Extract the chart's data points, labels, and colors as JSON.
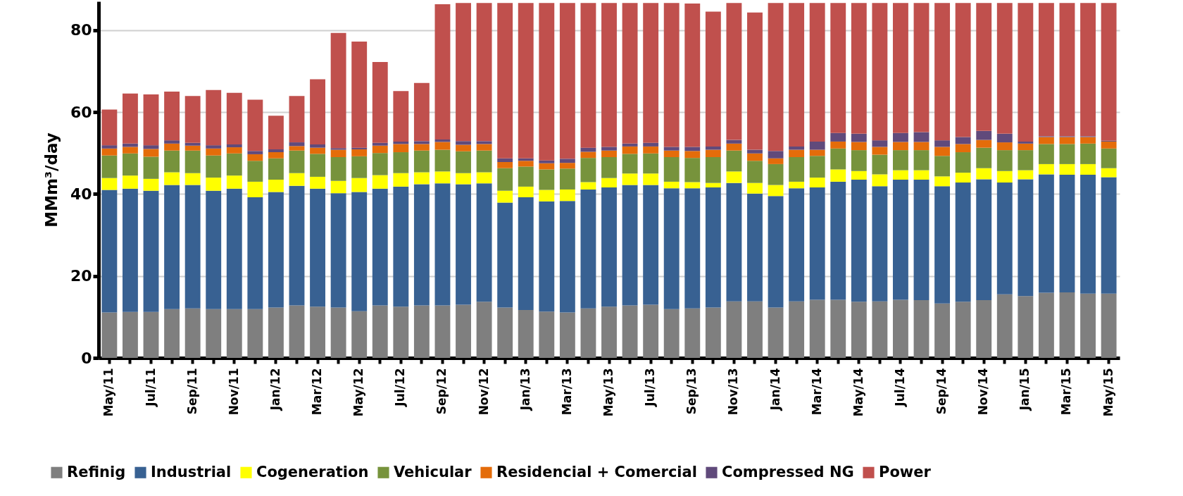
{
  "chart_data": {
    "type": "bar",
    "stacked": true,
    "ylabel": "MMm³/day",
    "ylim": [
      0,
      87
    ],
    "yticks": [
      0,
      20,
      40,
      60,
      80
    ],
    "grid": "y",
    "legend": "bottom",
    "categories": [
      "May/11",
      null,
      "Jul/11",
      null,
      "Sep/11",
      null,
      "Nov/11",
      null,
      "Jan/12",
      null,
      "Mar/12",
      null,
      "May/12",
      null,
      "Jul/12",
      null,
      "Sep/12",
      null,
      "Nov/12",
      null,
      "Jan/13",
      null,
      "Mar/13",
      null,
      "May/13",
      null,
      "Jul/13",
      null,
      "Sep/13",
      null,
      "Nov/13",
      null,
      "Jan/14",
      null,
      "Mar/14",
      null,
      "May/14",
      null,
      "Jul/14",
      null,
      "Sep/14",
      null,
      "Nov/14",
      null,
      "Jan/15",
      null,
      "Mar/15",
      null,
      "May/15"
    ],
    "series": [
      {
        "name": "Refinig",
        "color": "#7f7f7f",
        "values": [
          11.1,
          11.2,
          11.2,
          11.9,
          12.1,
          11.9,
          11.9,
          11.9,
          12.3,
          12.8,
          12.5,
          12.3,
          11.4,
          12.8,
          12.5,
          12.8,
          12.8,
          13.0,
          13.7,
          12.3,
          11.7,
          11.3,
          11.1,
          12.1,
          12.5,
          12.8,
          13.0,
          11.9,
          12.1,
          12.3,
          13.8,
          13.8,
          12.3,
          13.8,
          14.2,
          14.2,
          13.7,
          13.8,
          14.2,
          14.1,
          13.3,
          13.7,
          14.1,
          15.5,
          15.1,
          15.9,
          16.0,
          15.7,
          15.7
        ]
      },
      {
        "name": "Industrial",
        "color": "#386192",
        "values": [
          29.9,
          30.1,
          29.6,
          30.3,
          30.1,
          28.9,
          29.4,
          27.3,
          28.2,
          29.2,
          28.8,
          27.9,
          29.1,
          28.5,
          29.3,
          29.6,
          29.8,
          29.4,
          28.9,
          25.6,
          27.5,
          26.9,
          27.2,
          29.0,
          29.1,
          29.4,
          29.2,
          29.5,
          29.3,
          29.3,
          28.9,
          26.3,
          27.2,
          27.6,
          27.4,
          28.8,
          29.8,
          28.1,
          29.3,
          29.4,
          28.6,
          29.1,
          29.5,
          27.3,
          28.5,
          28.9,
          28.7,
          29.0,
          28.4
        ]
      },
      {
        "name": "Cogeneration",
        "color": "#ffff00",
        "values": [
          2.9,
          3.2,
          2.9,
          3.1,
          2.9,
          3.2,
          3.2,
          3.8,
          3.0,
          3.1,
          2.9,
          3.0,
          3.4,
          3.3,
          3.3,
          2.9,
          2.9,
          2.7,
          2.7,
          2.9,
          2.6,
          2.8,
          2.8,
          1.8,
          2.3,
          2.8,
          2.8,
          1.6,
          1.5,
          1.1,
          2.8,
          2.6,
          2.7,
          1.6,
          2.4,
          3.0,
          2.1,
          2.9,
          2.3,
          2.3,
          2.4,
          2.4,
          2.7,
          2.8,
          2.2,
          2.5,
          2.6,
          2.6,
          2.2
        ]
      },
      {
        "name": "Vehicular",
        "color": "#77933c",
        "values": [
          5.5,
          5.4,
          5.4,
          5.3,
          5.5,
          5.4,
          5.4,
          5.1,
          5.2,
          5.5,
          5.6,
          5.8,
          5.3,
          5.4,
          5.1,
          5.3,
          5.3,
          5.3,
          5.3,
          5.5,
          4.9,
          5.0,
          5.1,
          5.9,
          5.1,
          4.8,
          4.9,
          6.0,
          5.9,
          6.3,
          5.1,
          5.4,
          5.1,
          6.0,
          5.3,
          5.1,
          5.1,
          4.8,
          4.9,
          4.9,
          5.0,
          5.0,
          5.0,
          5.1,
          4.9,
          4.9,
          4.9,
          5.0,
          4.8
        ]
      },
      {
        "name": "Residencial + Comercial",
        "color": "#e46c0a",
        "values": [
          1.7,
          1.6,
          1.9,
          1.7,
          1.2,
          1.7,
          1.5,
          1.6,
          1.5,
          1.1,
          1.5,
          1.8,
          1.7,
          1.8,
          2.0,
          1.6,
          1.9,
          1.6,
          1.6,
          1.5,
          1.4,
          1.5,
          1.4,
          1.5,
          1.6,
          1.8,
          1.7,
          1.6,
          1.7,
          1.8,
          1.7,
          1.8,
          1.4,
          1.8,
          1.5,
          1.7,
          2.0,
          1.9,
          2.0,
          2.0,
          2.2,
          2.0,
          1.9,
          1.9,
          1.6,
          1.7,
          1.7,
          1.6,
          1.7
        ]
      },
      {
        "name": "Compressed NG",
        "color": "#604a7b",
        "values": [
          0.8,
          0.8,
          0.9,
          0.8,
          0.7,
          0.8,
          0.7,
          0.8,
          0.7,
          0.9,
          0.8,
          0.4,
          0.4,
          0.7,
          0.6,
          0.7,
          0.6,
          0.9,
          0.7,
          0.9,
          0.6,
          0.7,
          1.0,
          1.0,
          0.9,
          0.7,
          0.9,
          0.9,
          1.0,
          0.8,
          0.9,
          0.9,
          1.8,
          0.8,
          2.0,
          2.1,
          2.0,
          1.6,
          2.2,
          2.4,
          1.6,
          1.7,
          2.2,
          2.1,
          0.5,
          0.2,
          0.2,
          0.2,
          0.2
        ]
      },
      {
        "name": "Power",
        "color": "#c0504d",
        "values": [
          8.7,
          12.2,
          12.4,
          11.9,
          11.4,
          13.5,
          12.6,
          12.5,
          8.2,
          11.3,
          15.9,
          28.1,
          25.9,
          19.7,
          12.3,
          14.2,
          33.0,
          33.7,
          33.7,
          37.9,
          37.9,
          38.4,
          38.0,
          35.3,
          35.1,
          34.3,
          34.1,
          35.1,
          35.0,
          32.9,
          33.4,
          33.5,
          36.1,
          35.0,
          33.8,
          31.7,
          31.9,
          33.5,
          31.7,
          31.5,
          33.5,
          32.7,
          31.2,
          31.9,
          33.8,
          32.5,
          32.5,
          32.5,
          33.6
        ]
      }
    ]
  }
}
